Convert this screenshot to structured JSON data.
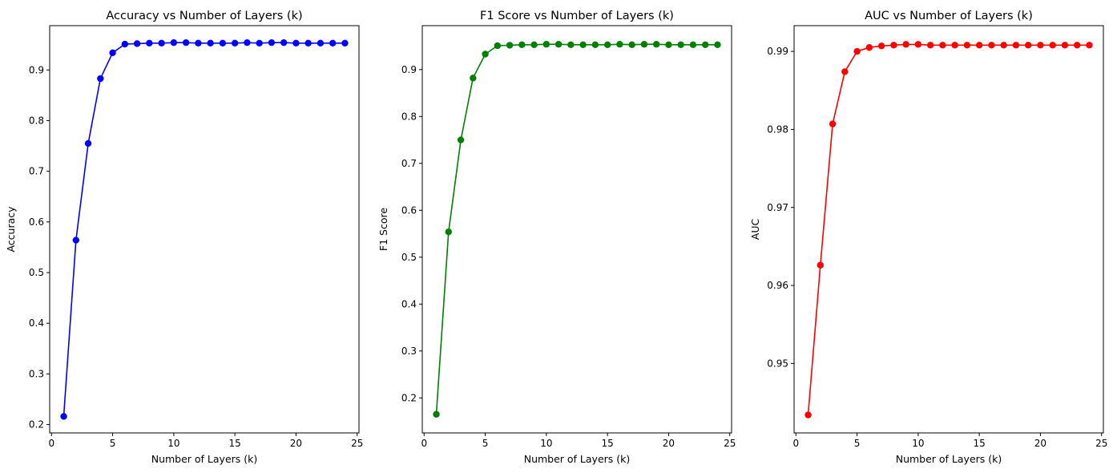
{
  "chart_data": [
    {
      "type": "line",
      "title": "Accuracy vs Number of Layers (k)",
      "xlabel": "Number of Layers (k)",
      "ylabel": "Accuracy",
      "color": "#0000ff",
      "marker": "circle",
      "grid": false,
      "xlim": [
        -0.15,
        25.15
      ],
      "ylim": [
        0.1835,
        0.9875
      ],
      "xticks": [
        0,
        5,
        10,
        15,
        20,
        25
      ],
      "xtick_labels": [
        "0",
        "5",
        "10",
        "15",
        "20",
        "25"
      ],
      "yticks": [
        0.2,
        0.3,
        0.4,
        0.5,
        0.6,
        0.7,
        0.8,
        0.9
      ],
      "ytick_labels": [
        "0.2",
        "0.3",
        "0.4",
        "0.5",
        "0.6",
        "0.7",
        "0.8",
        "0.9"
      ],
      "x": [
        1,
        2,
        3,
        4,
        5,
        6,
        7,
        8,
        9,
        10,
        11,
        12,
        13,
        14,
        15,
        16,
        17,
        18,
        19,
        20,
        21,
        22,
        23,
        24
      ],
      "y": [
        0.216,
        0.564,
        0.755,
        0.883,
        0.934,
        0.951,
        0.952,
        0.953,
        0.953,
        0.954,
        0.954,
        0.953,
        0.953,
        0.953,
        0.953,
        0.954,
        0.953,
        0.954,
        0.954,
        0.953,
        0.953,
        0.953,
        0.953,
        0.953
      ]
    },
    {
      "type": "line",
      "title": "F1 Score vs Number of Layers (k)",
      "xlabel": "Number of Layers (k)",
      "ylabel": "F1 Score",
      "color": "#008000",
      "marker": "circle",
      "grid": false,
      "xlim": [
        -0.15,
        25.15
      ],
      "ylim": [
        0.1253,
        0.9937
      ],
      "xticks": [
        0,
        5,
        10,
        15,
        20,
        25
      ],
      "xtick_labels": [
        "0",
        "5",
        "10",
        "15",
        "20",
        "25"
      ],
      "yticks": [
        0.2,
        0.3,
        0.4,
        0.5,
        0.6,
        0.7,
        0.8,
        0.9
      ],
      "ytick_labels": [
        "0.2",
        "0.3",
        "0.4",
        "0.5",
        "0.6",
        "0.7",
        "0.8",
        "0.9"
      ],
      "x": [
        1,
        2,
        3,
        4,
        5,
        6,
        7,
        8,
        9,
        10,
        11,
        12,
        13,
        14,
        15,
        16,
        17,
        18,
        19,
        20,
        21,
        22,
        23,
        24
      ],
      "y": [
        0.165,
        0.554,
        0.75,
        0.882,
        0.933,
        0.951,
        0.952,
        0.953,
        0.953,
        0.954,
        0.954,
        0.953,
        0.953,
        0.953,
        0.953,
        0.954,
        0.953,
        0.954,
        0.954,
        0.953,
        0.953,
        0.953,
        0.953,
        0.953
      ]
    },
    {
      "type": "line",
      "title": "AUC vs Number of Layers (k)",
      "xlabel": "Number of Layers (k)",
      "ylabel": "AUC",
      "color": "#ff0000",
      "marker": "circle",
      "grid": false,
      "xlim": [
        -0.15,
        25.15
      ],
      "ylim": [
        0.9411,
        0.9933
      ],
      "xticks": [
        0,
        5,
        10,
        15,
        20,
        25
      ],
      "xtick_labels": [
        "0",
        "5",
        "10",
        "15",
        "20",
        "25"
      ],
      "yticks": [
        0.95,
        0.96,
        0.97,
        0.98,
        0.99
      ],
      "ytick_labels": [
        "0.95",
        "0.96",
        "0.97",
        "0.98",
        "0.99"
      ],
      "x": [
        1,
        2,
        3,
        4,
        5,
        6,
        7,
        8,
        9,
        10,
        11,
        12,
        13,
        14,
        15,
        16,
        17,
        18,
        19,
        20,
        21,
        22,
        23,
        24
      ],
      "y": [
        0.9434,
        0.9626,
        0.9807,
        0.9874,
        0.99,
        0.9905,
        0.9907,
        0.9908,
        0.9909,
        0.9909,
        0.9908,
        0.9908,
        0.9908,
        0.9908,
        0.9908,
        0.9908,
        0.9908,
        0.9908,
        0.9908,
        0.9908,
        0.9908,
        0.9908,
        0.9908,
        0.9908
      ]
    }
  ]
}
